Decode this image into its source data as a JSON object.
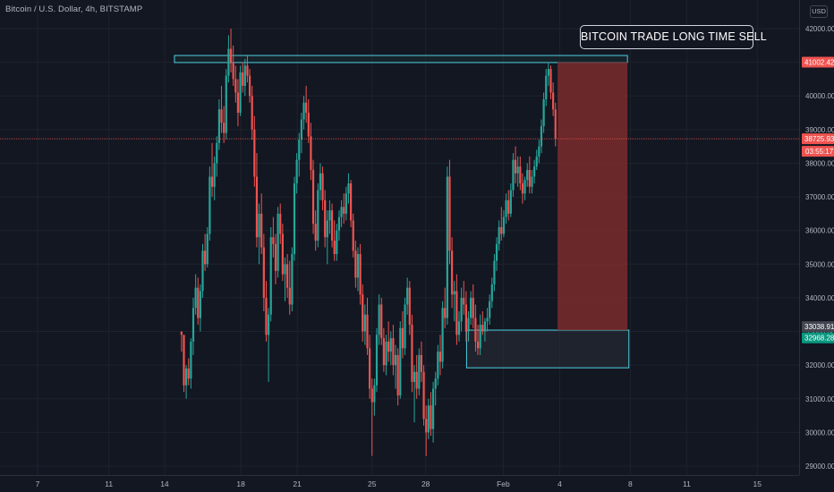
{
  "header": {
    "symbol_title": "Bitcoin / U.S. Dollar, 4h, BITSTAMP",
    "currency": "USD"
  },
  "annotation": {
    "text": "BITCOIN TRADE LONG TIME SELL"
  },
  "colors": {
    "background": "#131722",
    "up_candle": "#26a69a",
    "down_candle": "#ef5350",
    "zone_border": "#4dd0e1",
    "short_zone_fill": "#7b2b2b",
    "price_line": "#ef5350"
  },
  "chart_data": {
    "type": "candlestick",
    "title": "Bitcoin / U.S. Dollar, 4h, BITSTAMP",
    "ylim": [
      28800,
      42400
    ],
    "y_ticks": [
      "29000.00",
      "30000.00",
      "31000.00",
      "32000.00",
      "33000.00",
      "34000.00",
      "35000.00",
      "36000.00",
      "37000.00",
      "38000.00",
      "39000.00",
      "40000.00",
      "41000.00",
      "42000.00"
    ],
    "x_ticks": [
      "7",
      "11",
      "14",
      "18",
      "21",
      "25",
      "28",
      "Feb",
      "4",
      "8",
      "11",
      "15"
    ],
    "grid": true,
    "current_price": {
      "value": "38725.93",
      "countdown": "03:55:17"
    },
    "price_labels": [
      {
        "value": "41002.42",
        "price": 41002.42,
        "color": "#ef5350"
      },
      {
        "value": "33038.91",
        "price": 33038.91,
        "color": "#434651"
      },
      {
        "value": "32968.28",
        "price": 32968.28,
        "color": "#089981"
      }
    ],
    "zones": [
      {
        "name": "resistance",
        "top": 41202,
        "bottom": 40992,
        "from_day": 9.7,
        "to_day": 41.8
      },
      {
        "name": "support",
        "top": 33040,
        "bottom": 31920,
        "from_day": 30.4,
        "to_day": 41.9
      },
      {
        "name": "short-target",
        "top": 41002,
        "bottom": 33039,
        "from_day": 36.85,
        "to_day": 41.8
      }
    ],
    "candles": [
      [
        33000,
        33000,
        32400,
        32900
      ],
      [
        32900,
        32800,
        31200,
        31400
      ],
      [
        31400,
        32000,
        31000,
        31900
      ],
      [
        31900,
        32200,
        31400,
        31600
      ],
      [
        31600,
        32800,
        31300,
        32700
      ],
      [
        32700,
        34000,
        32300,
        33700
      ],
      [
        33700,
        34700,
        33500,
        34300
      ],
      [
        34300,
        34600,
        33200,
        33400
      ],
      [
        33400,
        34400,
        33000,
        34200
      ],
      [
        34200,
        35600,
        34000,
        35400
      ],
      [
        35400,
        35900,
        34800,
        35000
      ],
      [
        35000,
        36100,
        34900,
        35900
      ],
      [
        35900,
        37900,
        35700,
        37600
      ],
      [
        37600,
        38600,
        37000,
        37300
      ],
      [
        37300,
        38200,
        36900,
        38000
      ],
      [
        38000,
        38800,
        37600,
        38600
      ],
      [
        38600,
        39900,
        38400,
        39600
      ],
      [
        39600,
        40300,
        38900,
        39200
      ],
      [
        39200,
        39700,
        38600,
        38900
      ],
      [
        38900,
        40800,
        38700,
        40600
      ],
      [
        40600,
        41800,
        40400,
        41400
      ],
      [
        41400,
        42000,
        40700,
        41000
      ],
      [
        41000,
        41500,
        40300,
        40500
      ],
      [
        40500,
        40900,
        39800,
        40100
      ],
      [
        40100,
        40500,
        39100,
        39500
      ],
      [
        39500,
        40900,
        39400,
        40700
      ],
      [
        40700,
        41000,
        40100,
        40300
      ],
      [
        40300,
        41100,
        40000,
        40900
      ],
      [
        40900,
        41200,
        40400,
        40600
      ],
      [
        40600,
        40800,
        39800,
        40000
      ],
      [
        40000,
        40300,
        38700,
        39000
      ],
      [
        39000,
        39400,
        37300,
        37600
      ],
      [
        37600,
        38300,
        35500,
        35800
      ],
      [
        35800,
        36800,
        35000,
        36500
      ],
      [
        36500,
        37100,
        35300,
        35500
      ],
      [
        35500,
        35900,
        33600,
        34000
      ],
      [
        34000,
        34500,
        32700,
        32900
      ],
      [
        32900,
        33700,
        31500,
        33500
      ],
      [
        33500,
        36100,
        33300,
        35800
      ],
      [
        35800,
        36400,
        35200,
        35600
      ],
      [
        35600,
        35900,
        34400,
        34800
      ],
      [
        34800,
        36700,
        34600,
        36500
      ],
      [
        36500,
        36800,
        35600,
        35900
      ],
      [
        35900,
        36200,
        34500,
        34700
      ],
      [
        34700,
        35200,
        33900,
        35000
      ],
      [
        35000,
        35300,
        34000,
        34300
      ],
      [
        34300,
        35100,
        33500,
        33800
      ],
      [
        33800,
        35500,
        33600,
        35300
      ],
      [
        35300,
        37600,
        35100,
        37400
      ],
      [
        37400,
        38300,
        37100,
        38100
      ],
      [
        38100,
        38900,
        37600,
        38700
      ],
      [
        38700,
        39500,
        38300,
        39300
      ],
      [
        39300,
        40000,
        39000,
        39800
      ],
      [
        39800,
        40300,
        39200,
        39500
      ],
      [
        39500,
        39900,
        38600,
        38800
      ],
      [
        38800,
        39200,
        37500,
        37800
      ],
      [
        37800,
        38100,
        35900,
        36200
      ],
      [
        36200,
        36600,
        35400,
        35700
      ],
      [
        35700,
        37400,
        35500,
        37200
      ],
      [
        37200,
        38000,
        36900,
        37700
      ],
      [
        37700,
        37900,
        36600,
        36900
      ],
      [
        36900,
        37200,
        35500,
        35800
      ],
      [
        35800,
        36600,
        35000,
        36300
      ],
      [
        36300,
        36900,
        35900,
        36600
      ],
      [
        36600,
        36800,
        35500,
        35700
      ],
      [
        35700,
        36300,
        35100,
        35300
      ],
      [
        35300,
        36200,
        35100,
        36000
      ],
      [
        36000,
        36600,
        35700,
        36400
      ],
      [
        36400,
        36900,
        36100,
        36700
      ],
      [
        36700,
        37100,
        36200,
        36500
      ],
      [
        36500,
        37300,
        36300,
        37100
      ],
      [
        37100,
        37700,
        36800,
        37400
      ],
      [
        37400,
        37500,
        36100,
        36300
      ],
      [
        36300,
        36500,
        35200,
        35400
      ],
      [
        35400,
        35700,
        34300,
        34600
      ],
      [
        34600,
        35500,
        34200,
        35300
      ],
      [
        35300,
        35600,
        33800,
        34100
      ],
      [
        34100,
        34400,
        32700,
        33000
      ],
      [
        33000,
        33800,
        32600,
        33500
      ],
      [
        33500,
        34000,
        32300,
        32500
      ],
      [
        32500,
        32900,
        31000,
        31300
      ],
      [
        31300,
        31600,
        29300,
        30900
      ],
      [
        30900,
        31600,
        30500,
        31400
      ],
      [
        31400,
        33100,
        31200,
        32900
      ],
      [
        32900,
        34100,
        32600,
        33800
      ],
      [
        33800,
        34000,
        32600,
        32800
      ],
      [
        32800,
        33100,
        31800,
        32000
      ],
      [
        32000,
        32900,
        31700,
        32700
      ],
      [
        32700,
        33300,
        32100,
        32400
      ],
      [
        32400,
        33000,
        32000,
        32800
      ],
      [
        32800,
        33200,
        31700,
        32000
      ],
      [
        32000,
        32600,
        31300,
        32300
      ],
      [
        32300,
        32500,
        30800,
        31100
      ],
      [
        31100,
        33300,
        31000,
        33100
      ],
      [
        33100,
        33600,
        32200,
        32500
      ],
      [
        32500,
        34000,
        32300,
        33800
      ],
      [
        33800,
        34600,
        33500,
        34300
      ],
      [
        34300,
        34500,
        32900,
        33200
      ],
      [
        33200,
        33500,
        31200,
        31500
      ],
      [
        31500,
        32000,
        30300,
        31800
      ],
      [
        31800,
        32300,
        31000,
        31300
      ],
      [
        31300,
        32500,
        31100,
        32300
      ],
      [
        32300,
        32700,
        31500,
        31800
      ],
      [
        31800,
        32000,
        30200,
        30400
      ],
      [
        30400,
        30800,
        29300,
        30000
      ],
      [
        30000,
        31000,
        29800,
        30800
      ],
      [
        30800,
        31200,
        29900,
        30100
      ],
      [
        30100,
        31500,
        29700,
        31300
      ],
      [
        31300,
        31800,
        30800,
        31600
      ],
      [
        31600,
        32600,
        31400,
        32400
      ],
      [
        32400,
        32900,
        31700,
        32100
      ],
      [
        32100,
        33900,
        31900,
        33700
      ],
      [
        33700,
        34300,
        33100,
        33400
      ],
      [
        33400,
        37900,
        33200,
        37600
      ],
      [
        37600,
        38100,
        35000,
        35400
      ],
      [
        35400,
        35800,
        33700,
        34100
      ],
      [
        34100,
        34500,
        33300,
        34200
      ],
      [
        34200,
        34700,
        32600,
        32900
      ],
      [
        32900,
        33600,
        32700,
        33300
      ],
      [
        33300,
        34300,
        33000,
        34000
      ],
      [
        34000,
        34500,
        33500,
        33800
      ],
      [
        33800,
        34200,
        32700,
        33000
      ],
      [
        33000,
        33600,
        32700,
        33400
      ],
      [
        33400,
        34200,
        33200,
        34000
      ],
      [
        34000,
        34400,
        33100,
        33400
      ],
      [
        33400,
        33800,
        32400,
        32700
      ],
      [
        32700,
        33200,
        32300,
        32500
      ],
      [
        32500,
        33500,
        32300,
        33200
      ],
      [
        33200,
        33600,
        32900,
        33000
      ],
      [
        33000,
        33400,
        32700,
        33300
      ],
      [
        33300,
        33700,
        33000,
        33400
      ],
      [
        33400,
        34100,
        33200,
        33900
      ],
      [
        33900,
        34600,
        33700,
        34400
      ],
      [
        34400,
        35300,
        34200,
        35100
      ],
      [
        35100,
        35800,
        34800,
        35600
      ],
      [
        35600,
        36300,
        35400,
        36100
      ],
      [
        36100,
        36700,
        35700,
        35900
      ],
      [
        35900,
        36600,
        35800,
        36400
      ],
      [
        36400,
        37100,
        36200,
        36900
      ],
      [
        36900,
        37200,
        36300,
        36500
      ],
      [
        36500,
        37400,
        36400,
        37200
      ],
      [
        37200,
        38300,
        37000,
        38100
      ],
      [
        38100,
        38500,
        37400,
        37700
      ],
      [
        37700,
        38200,
        37300,
        37900
      ],
      [
        37900,
        38200,
        37200,
        37400
      ],
      [
        37400,
        37700,
        36800,
        37100
      ],
      [
        37100,
        37600,
        36900,
        37500
      ],
      [
        37500,
        38000,
        37300,
        37800
      ],
      [
        37800,
        38200,
        37100,
        37300
      ],
      [
        37300,
        37800,
        37100,
        37600
      ],
      [
        37600,
        38100,
        37400,
        37900
      ],
      [
        37900,
        38400,
        37800,
        38200
      ],
      [
        38200,
        38700,
        38000,
        38500
      ],
      [
        38500,
        39300,
        38300,
        39100
      ],
      [
        39100,
        40100,
        38900,
        39900
      ],
      [
        39900,
        40800,
        39700,
        40600
      ],
      [
        40600,
        41002,
        40300,
        40800
      ],
      [
        40800,
        40900,
        39900,
        40100
      ],
      [
        40100,
        40400,
        39400,
        39600
      ],
      [
        39600,
        39800,
        38500,
        38726
      ]
    ]
  }
}
